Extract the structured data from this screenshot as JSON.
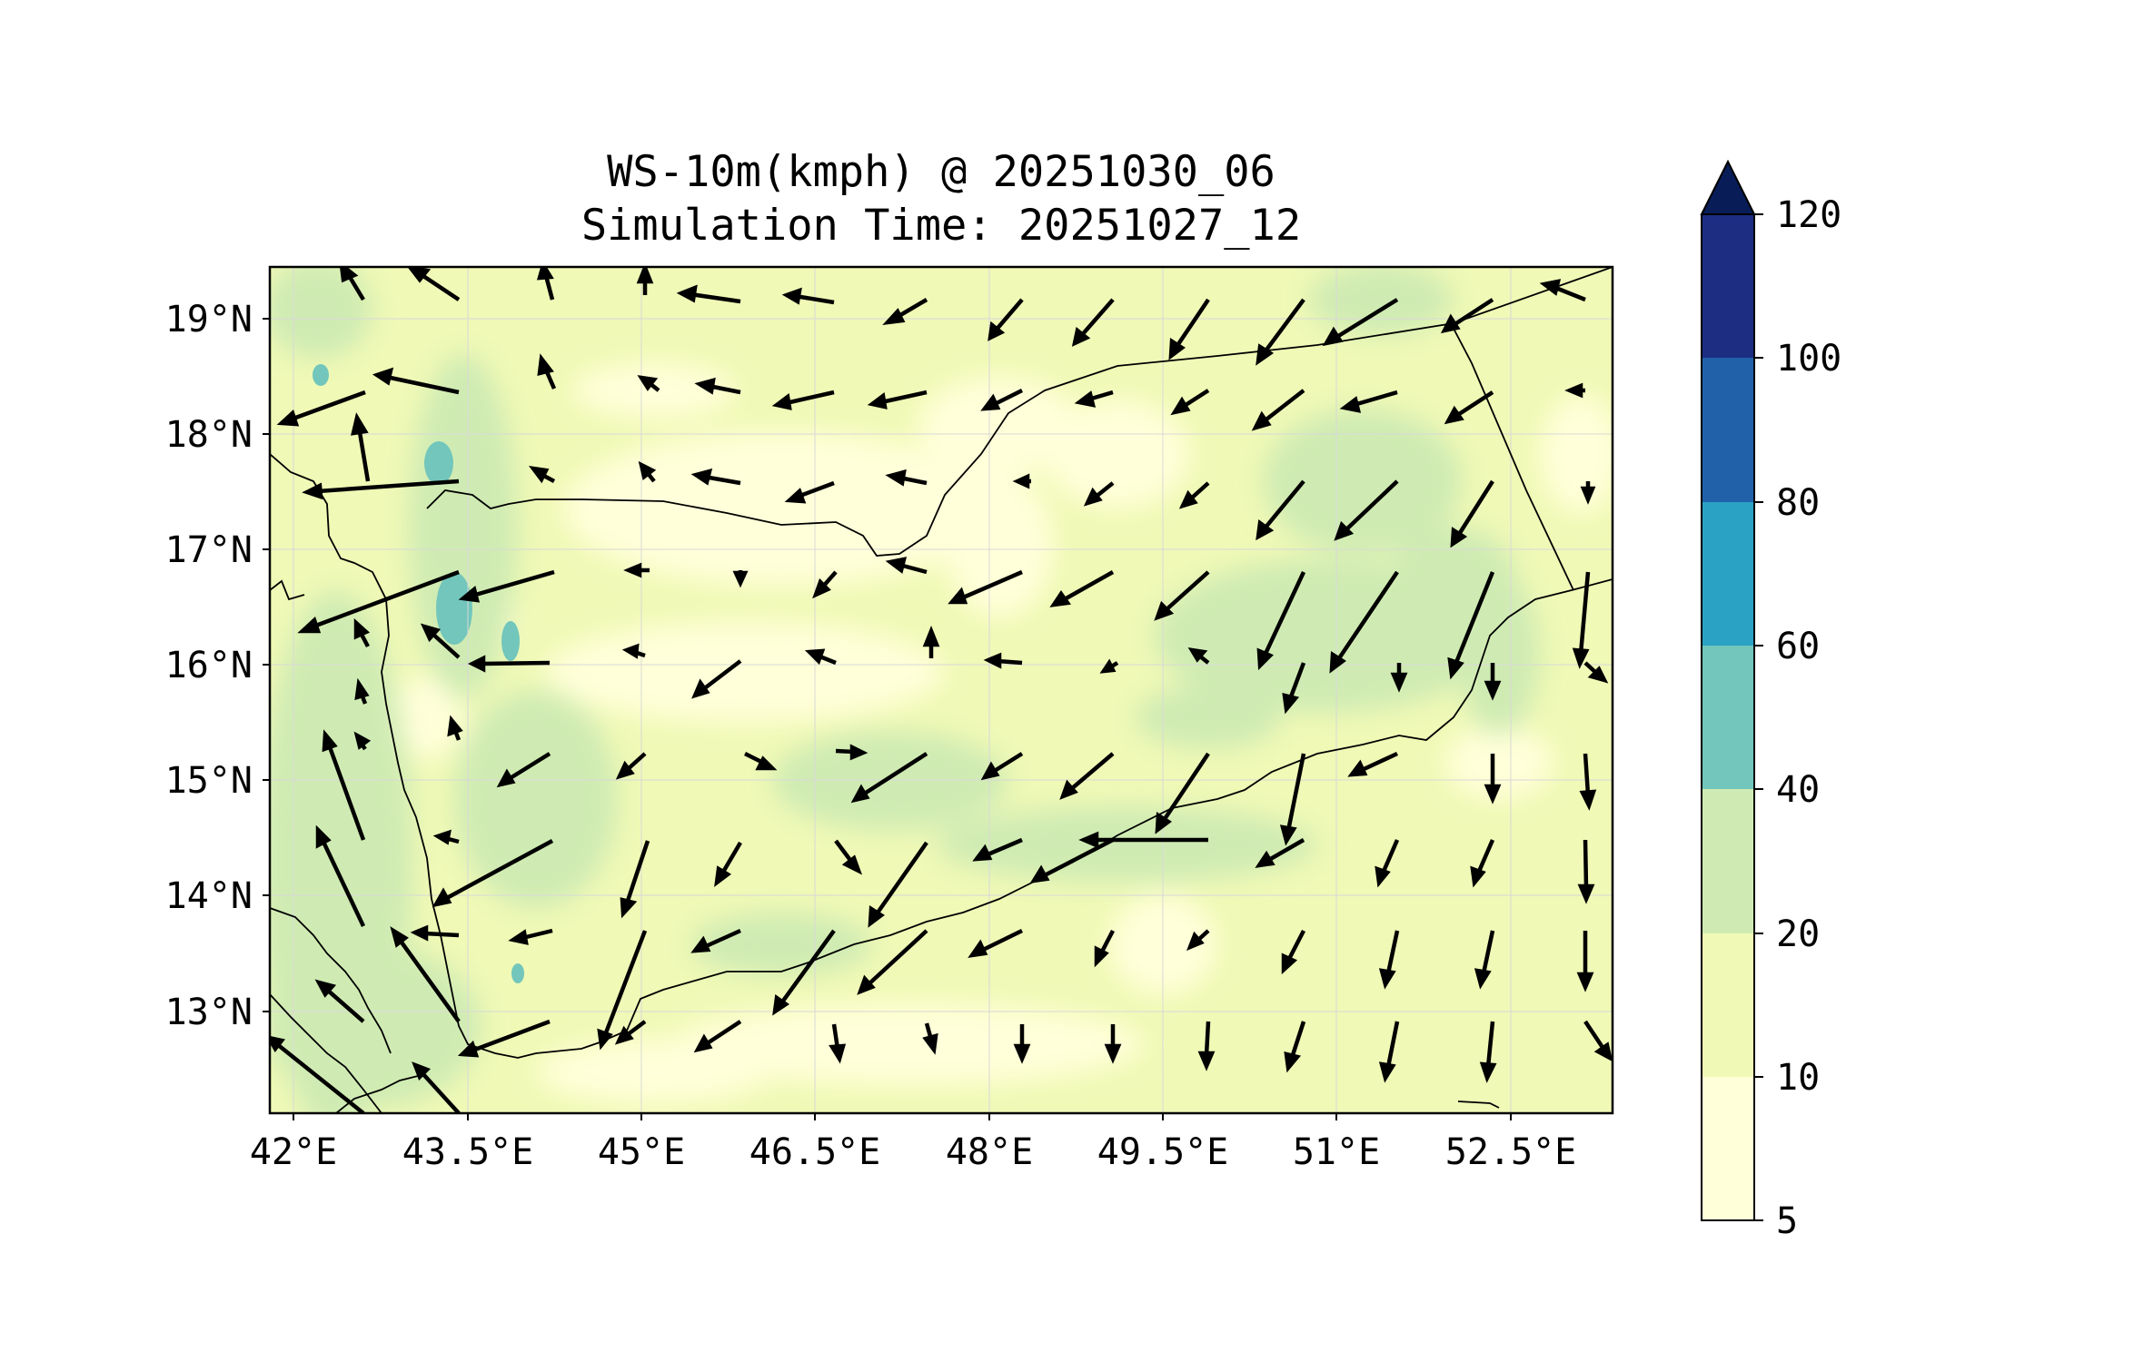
{
  "figure": {
    "title_line1": "WS-10m(kmph) @ 20251030_06",
    "title_line2": "Simulation Time: 20251027_12"
  },
  "chart_data": {
    "type": "map-contour-with-wind-vectors",
    "variable": "WS-10m(kmph)",
    "valid_time": "20251030_06",
    "simulation_time": "20251027_12",
    "lon_range": [
      42,
      52.9
    ],
    "lat_range": [
      12.1,
      19.45
    ],
    "x_ticks": [
      "42°E",
      "43.5°E",
      "45°E",
      "46.5°E",
      "48°E",
      "49.5°E",
      "51°E",
      "52.5°E"
    ],
    "x_tick_values": [
      42,
      43.5,
      45,
      46.5,
      48,
      49.5,
      51,
      52.5
    ],
    "y_ticks": [
      "19°N",
      "18°N",
      "17°N",
      "16°N",
      "15°N",
      "14°N",
      "13°N"
    ],
    "y_tick_values": [
      19,
      18,
      17,
      16,
      15,
      14,
      13
    ],
    "colorbar": {
      "levels": [
        5,
        10,
        20,
        40,
        60,
        80,
        100,
        120
      ],
      "level_labels": [
        "5",
        "10",
        "20",
        "40",
        "60",
        "80",
        "100",
        "120"
      ],
      "colors": [
        "#ffffd9",
        "#f0f9b6",
        "#cfebb3",
        "#72c6bb",
        "#2aa2c4",
        "#2061aa",
        "#1d2d82"
      ],
      "extend_color": "#081d58",
      "extend": "max"
    }
  }
}
